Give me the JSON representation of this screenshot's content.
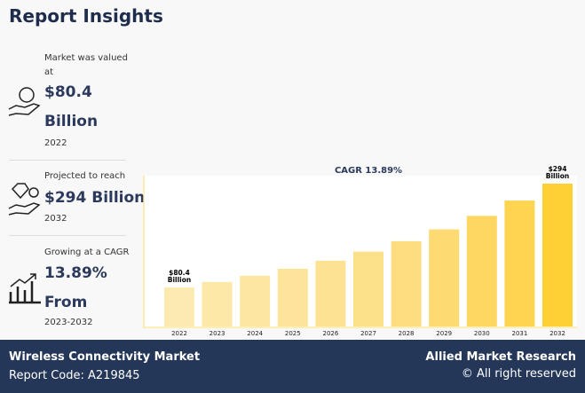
{
  "header": {
    "title": "Report Insights"
  },
  "stats": [
    {
      "label": "Market was valued at",
      "value": "$80.4 Billion",
      "year": "2022"
    },
    {
      "label": "Projected to reach",
      "value": "$294 Billion",
      "year": "2032"
    },
    {
      "label": "Growing at a CAGR",
      "value": "13.89% From",
      "year": "2023-2032"
    }
  ],
  "chart_data": {
    "type": "bar",
    "title": "CAGR 13.89%",
    "categories": [
      "2022",
      "2023",
      "2024",
      "2025",
      "2026",
      "2027",
      "2028",
      "2029",
      "2030",
      "2031",
      "2032"
    ],
    "values": [
      80.4,
      91.6,
      104.3,
      118.8,
      135.3,
      154.1,
      175.5,
      199.8,
      227.6,
      259.2,
      294
    ],
    "value_labels": [
      "$80.4 Billion",
      null,
      null,
      null,
      null,
      null,
      null,
      null,
      null,
      null,
      "$294 Billion"
    ],
    "colors": [
      "#fdeab0",
      "#fde8a8",
      "#fde6a1",
      "#fde49a",
      "#fde293",
      "#fde08a",
      "#fddd7f",
      "#fdda72",
      "#fed762",
      "#fed450",
      "#ffd033"
    ]
  },
  "footer": {
    "market": "Wireless Connectivity Market",
    "report_code": "Report Code: A219845",
    "brand": "Allied Market Research",
    "rights": "© All right reserved"
  }
}
